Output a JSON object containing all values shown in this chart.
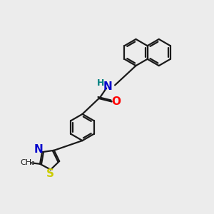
{
  "bg_color": "#ececec",
  "bond_color": "#1a1a1a",
  "bond_width": 1.6,
  "atom_colors": {
    "N": "#0000cc",
    "O": "#ff0000",
    "S": "#cccc00",
    "H": "#008080"
  },
  "font_size": 9,
  "fig_size": [
    3.0,
    3.0
  ],
  "dpi": 100,
  "naph_r": 0.62,
  "benz_r": 0.62,
  "thiaz_r": 0.48
}
